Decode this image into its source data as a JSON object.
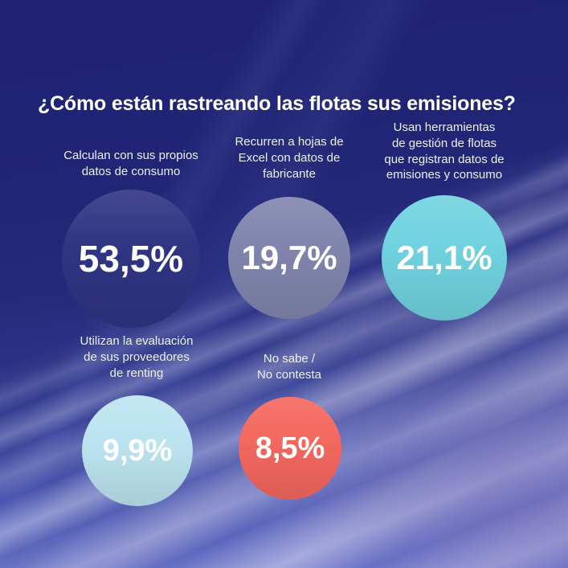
{
  "page": {
    "title": "¿Cómo están rastreando las flotas sus emisiones?"
  },
  "colors": {
    "background_top": "#1f2273",
    "background_bottom": "#5062c4",
    "streak_lavender": "#c8cdf0",
    "title_text": "#ffffff",
    "label_text": "#eef1fa",
    "value_text": "#ffffff"
  },
  "chart_data": {
    "type": "bubble",
    "title": "¿Cómo están rastreando las flotas sus emisiones?",
    "legend": false,
    "value_format": "percentage with comma decimal separator",
    "items": [
      {
        "label": "Calculan con sus propios\ndatos de consumo",
        "value": 53.5,
        "value_label": "53,5%",
        "color": "#2f3583"
      },
      {
        "label": "Recurren a hojas de\nExcel con datos de\nfabricante",
        "value": 19.7,
        "value_label": "19,7%",
        "color": "#8185ad"
      },
      {
        "label": "Usan herramientas\nde gestión de flotas\nque registran datos de\nemisiones y consumo",
        "value": 21.1,
        "value_label": "21,1%",
        "color": "#70d3df"
      },
      {
        "label": "Utilizan la evaluación\nde sus proveedores\nde renting",
        "value": 9.9,
        "value_label": "9,9%",
        "color": "#bce4f0"
      },
      {
        "label": "No sabe /\nNo contesta",
        "value": 8.5,
        "value_label": "8,5%",
        "color": "#f4685f"
      }
    ]
  }
}
